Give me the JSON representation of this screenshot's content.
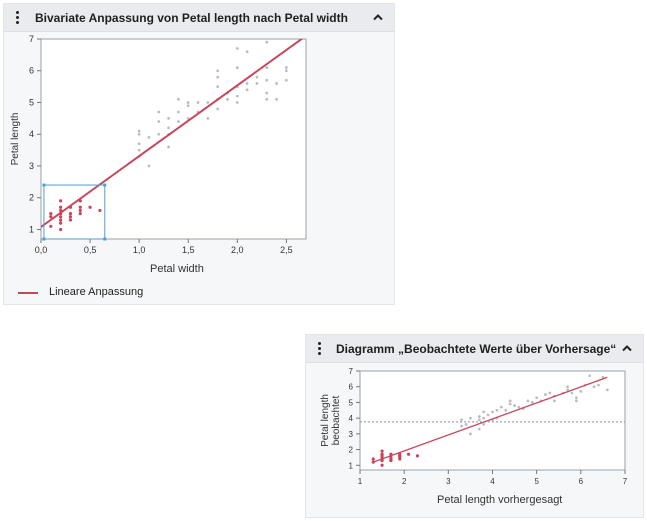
{
  "panel1": {
    "title": "Bivariate Anpassung von Petal length nach Petal width",
    "legend_label": "Lineare Anpassung",
    "accent_color": "#c8465a",
    "selection_color": "#4f9fd1",
    "point_color_unselected": "#b9bdc4",
    "chart_data": {
      "type": "scatter",
      "title": "",
      "xlabel": "Petal width",
      "ylabel": "Petal length",
      "xlim": [
        0,
        2.7
      ],
      "ylim": [
        0.7,
        7
      ],
      "x_ticks": [
        "0,0",
        "0,5",
        "1,0",
        "1,5",
        "2,0",
        "2,5"
      ],
      "x_tick_values": [
        0,
        0.5,
        1.0,
        1.5,
        2.0,
        2.5
      ],
      "y_ticks": [
        "1",
        "2",
        "3",
        "4",
        "5",
        "6",
        "7"
      ],
      "y_tick_values": [
        1,
        2,
        3,
        4,
        5,
        6,
        7
      ],
      "fit_line": {
        "name": "Lineare Anpassung",
        "x": [
          0,
          2.7
        ],
        "y": [
          1.08,
          7.1
        ]
      },
      "selection_box": {
        "x": [
          0.03,
          0.65
        ],
        "y": [
          0.7,
          2.4
        ]
      },
      "series": [
        {
          "name": "selected",
          "points": [
            [
              0.1,
              1.4
            ],
            [
              0.1,
              1.5
            ],
            [
              0.1,
              1.1
            ],
            [
              0.2,
              1.3
            ],
            [
              0.2,
              1.4
            ],
            [
              0.2,
              1.5
            ],
            [
              0.2,
              1.6
            ],
            [
              0.2,
              1.7
            ],
            [
              0.2,
              1.9
            ],
            [
              0.2,
              1.2
            ],
            [
              0.2,
              1.0
            ],
            [
              0.3,
              1.3
            ],
            [
              0.3,
              1.4
            ],
            [
              0.3,
              1.5
            ],
            [
              0.3,
              1.7
            ],
            [
              0.4,
              1.5
            ],
            [
              0.4,
              1.6
            ],
            [
              0.4,
              1.7
            ],
            [
              0.4,
              1.9
            ],
            [
              0.5,
              1.7
            ],
            [
              0.6,
              1.6
            ]
          ]
        },
        {
          "name": "unselected",
          "points": [
            [
              1.0,
              3.3
            ],
            [
              1.0,
              3.5
            ],
            [
              1.0,
              3.7
            ],
            [
              1.0,
              4.0
            ],
            [
              1.0,
              4.1
            ],
            [
              1.1,
              3.0
            ],
            [
              1.1,
              3.9
            ],
            [
              1.2,
              4.0
            ],
            [
              1.2,
              4.4
            ],
            [
              1.2,
              4.7
            ],
            [
              1.3,
              3.6
            ],
            [
              1.3,
              4.0
            ],
            [
              1.3,
              4.2
            ],
            [
              1.3,
              4.5
            ],
            [
              1.4,
              4.4
            ],
            [
              1.4,
              4.7
            ],
            [
              1.4,
              5.1
            ],
            [
              1.5,
              4.5
            ],
            [
              1.5,
              4.9
            ],
            [
              1.5,
              5.0
            ],
            [
              1.6,
              4.7
            ],
            [
              1.6,
              5.0
            ],
            [
              1.7,
              4.5
            ],
            [
              1.7,
              5.0
            ],
            [
              1.8,
              4.8
            ],
            [
              1.8,
              5.1
            ],
            [
              1.8,
              5.5
            ],
            [
              1.8,
              5.8
            ],
            [
              1.8,
              6.0
            ],
            [
              1.9,
              5.1
            ],
            [
              1.9,
              5.3
            ],
            [
              2.0,
              5.0
            ],
            [
              2.0,
              5.2
            ],
            [
              2.0,
              5.5
            ],
            [
              2.0,
              6.1
            ],
            [
              2.0,
              6.7
            ],
            [
              2.1,
              5.4
            ],
            [
              2.1,
              5.6
            ],
            [
              2.1,
              6.6
            ],
            [
              2.2,
              5.6
            ],
            [
              2.2,
              5.8
            ],
            [
              2.3,
              5.1
            ],
            [
              2.3,
              5.3
            ],
            [
              2.3,
              5.7
            ],
            [
              2.3,
              6.1
            ],
            [
              2.3,
              6.9
            ],
            [
              2.4,
              5.1
            ],
            [
              2.4,
              5.6
            ],
            [
              2.5,
              5.7
            ],
            [
              2.5,
              6.0
            ],
            [
              2.5,
              6.1
            ]
          ]
        }
      ]
    }
  },
  "panel2": {
    "title": "Diagramm „Beobachtete Werte über Vorhersage“",
    "chart_data": {
      "type": "scatter",
      "title": "",
      "xlabel": "Petal length vorhergesagt",
      "ylabel": "Petal length beobachtet",
      "ylabel_lines": [
        "Petal length",
        "beobachtet"
      ],
      "xlim": [
        1,
        7
      ],
      "ylim": [
        0.7,
        7
      ],
      "x_ticks": [
        "1",
        "2",
        "3",
        "4",
        "5",
        "6",
        "7"
      ],
      "x_tick_values": [
        1,
        2,
        3,
        4,
        5,
        6,
        7
      ],
      "y_ticks": [
        "1",
        "2",
        "3",
        "4",
        "5",
        "6",
        "7"
      ],
      "y_tick_values": [
        1,
        2,
        3,
        4,
        5,
        6,
        7
      ],
      "fit_line": {
        "x": [
          1.3,
          6.6
        ],
        "y": [
          1.2,
          6.6
        ]
      },
      "mean_line_y": 3.76,
      "series": [
        {
          "name": "selected",
          "points": [
            [
              1.3,
              1.2
            ],
            [
              1.3,
              1.4
            ],
            [
              1.5,
              1.0
            ],
            [
              1.5,
              1.3
            ],
            [
              1.5,
              1.4
            ],
            [
              1.5,
              1.5
            ],
            [
              1.5,
              1.6
            ],
            [
              1.5,
              1.7
            ],
            [
              1.5,
              1.9
            ],
            [
              1.7,
              1.3
            ],
            [
              1.7,
              1.4
            ],
            [
              1.7,
              1.5
            ],
            [
              1.7,
              1.7
            ],
            [
              1.9,
              1.4
            ],
            [
              1.9,
              1.5
            ],
            [
              1.9,
              1.6
            ],
            [
              1.9,
              1.7
            ],
            [
              2.1,
              1.7
            ],
            [
              2.3,
              1.6
            ]
          ]
        },
        {
          "name": "unselected",
          "points": [
            [
              3.3,
              3.5
            ],
            [
              3.3,
              3.9
            ],
            [
              3.4,
              3.6
            ],
            [
              3.5,
              3.0
            ],
            [
              3.5,
              4.0
            ],
            [
              3.7,
              3.3
            ],
            [
              3.7,
              3.9
            ],
            [
              3.7,
              4.1
            ],
            [
              3.8,
              3.6
            ],
            [
              3.8,
              4.0
            ],
            [
              3.8,
              4.4
            ],
            [
              3.9,
              4.2
            ],
            [
              4.0,
              3.9
            ],
            [
              4.0,
              4.4
            ],
            [
              4.1,
              4.0
            ],
            [
              4.1,
              4.5
            ],
            [
              4.2,
              4.7
            ],
            [
              4.3,
              4.5
            ],
            [
              4.4,
              4.9
            ],
            [
              4.4,
              5.1
            ],
            [
              4.5,
              4.8
            ],
            [
              4.6,
              4.7
            ],
            [
              4.7,
              4.6
            ],
            [
              4.8,
              5.1
            ],
            [
              4.9,
              5.0
            ],
            [
              5.0,
              5.3
            ],
            [
              5.1,
              5.1
            ],
            [
              5.2,
              5.5
            ],
            [
              5.3,
              5.6
            ],
            [
              5.4,
              5.1
            ],
            [
              5.4,
              5.4
            ],
            [
              5.6,
              5.6
            ],
            [
              5.7,
              5.8
            ],
            [
              5.7,
              6.0
            ],
            [
              5.8,
              5.6
            ],
            [
              5.9,
              5.1
            ],
            [
              5.9,
              5.3
            ],
            [
              6.0,
              5.7
            ],
            [
              6.1,
              6.1
            ],
            [
              6.2,
              6.7
            ],
            [
              6.3,
              6.0
            ],
            [
              6.4,
              6.1
            ],
            [
              6.5,
              6.6
            ],
            [
              6.6,
              5.8
            ]
          ]
        }
      ]
    }
  }
}
